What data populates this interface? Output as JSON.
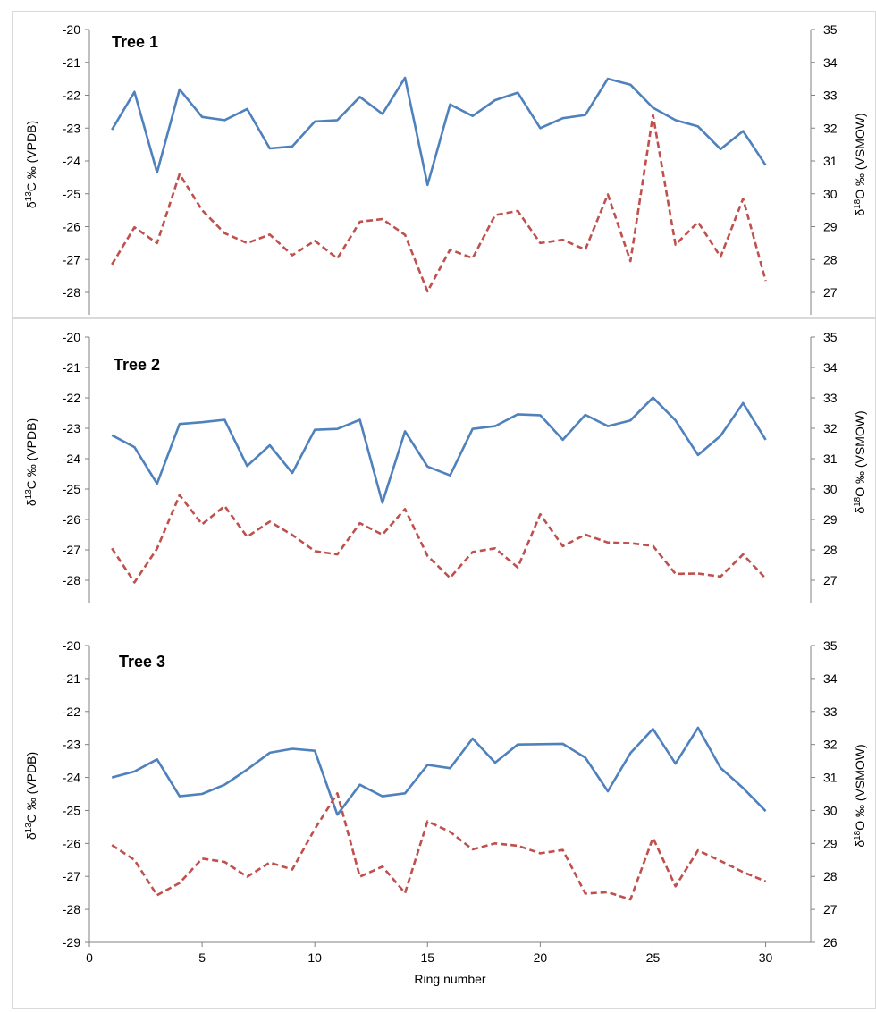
{
  "figure": {
    "xlabel": "Ring number",
    "x_ticks": [
      "0",
      "5",
      "10",
      "15",
      "20",
      "25",
      "30"
    ],
    "colors": {
      "carbon": "#4f81bd",
      "oxygen": "#c0504d",
      "axis": "#808080",
      "frame": "#d9d9d9"
    }
  },
  "chart_data": [
    {
      "type": "line",
      "title": "Tree 1",
      "xlabel": "",
      "ylabel_left": "δ13C ‰ (VPDB)",
      "ylabel_right": "δ18O ‰ (VSMOW)",
      "ylim_left": [
        -28,
        -20
      ],
      "ylim_right": [
        27,
        35
      ],
      "y_ticks_left": [
        "-20",
        "-21",
        "-22",
        "-23",
        "-24",
        "-25",
        "-26",
        "-27",
        "-28"
      ],
      "y_ticks_right": [
        "35",
        "34",
        "33",
        "32",
        "31",
        "30",
        "29",
        "28",
        "27"
      ],
      "x": [
        1,
        2,
        3,
        4,
        5,
        6,
        7,
        8,
        9,
        10,
        11,
        12,
        13,
        14,
        15,
        16,
        17,
        18,
        19,
        20,
        21,
        22,
        23,
        24,
        25,
        26,
        27,
        28,
        29,
        30
      ],
      "series": [
        {
          "key": "d13C",
          "axis": "left",
          "style": "solid",
          "values": [
            -23.05,
            -21.9,
            -24.35,
            -21.82,
            -22.66,
            -22.76,
            -22.42,
            -23.62,
            -23.56,
            -22.8,
            -22.76,
            -22.05,
            -22.57,
            -21.47,
            -24.73,
            -22.28,
            -22.63,
            -22.15,
            -21.92,
            -23.0,
            -22.7,
            -22.6,
            -21.5,
            -21.68,
            -22.38,
            -22.76,
            -22.95,
            -23.64,
            -23.09,
            -24.13
          ]
        },
        {
          "key": "d18O",
          "axis": "right",
          "style": "dashed",
          "values": [
            27.85,
            28.98,
            28.5,
            30.6,
            29.5,
            28.8,
            28.5,
            28.76,
            28.13,
            28.57,
            28.03,
            29.15,
            29.23,
            28.75,
            27.03,
            28.3,
            28.04,
            29.35,
            29.48,
            28.5,
            28.6,
            28.3,
            29.98,
            27.95,
            32.4,
            28.45,
            29.14,
            28.08,
            29.85,
            27.35
          ]
        }
      ]
    },
    {
      "type": "line",
      "title": "Tree 2",
      "xlabel": "",
      "ylabel_left": "δ13C ‰ (VPDB)",
      "ylabel_right": "δ18O ‰ (VSMOW)",
      "ylim_left": [
        -28,
        -20
      ],
      "ylim_right": [
        27,
        35
      ],
      "y_ticks_left": [
        "-20",
        "-21",
        "-22",
        "-23",
        "-24",
        "-25",
        "-26",
        "-27",
        "-28"
      ],
      "y_ticks_right": [
        "35",
        "34",
        "33",
        "32",
        "31",
        "30",
        "29",
        "28",
        "27"
      ],
      "x": [
        1,
        2,
        3,
        4,
        5,
        6,
        7,
        8,
        9,
        10,
        11,
        12,
        13,
        14,
        15,
        16,
        17,
        18,
        19,
        20,
        21,
        22,
        23,
        24,
        25,
        26,
        27,
        28,
        29,
        30
      ],
      "series": [
        {
          "key": "d13C",
          "axis": "left",
          "style": "solid",
          "values": [
            -23.23,
            -23.62,
            -24.82,
            -22.86,
            -22.8,
            -22.72,
            -24.24,
            -23.56,
            -24.47,
            -23.05,
            -23.02,
            -22.72,
            -25.45,
            -23.1,
            -24.26,
            -24.55,
            -23.02,
            -22.93,
            -22.54,
            -22.57,
            -23.38,
            -22.56,
            -22.93,
            -22.74,
            -21.99,
            -22.74,
            -23.88,
            -23.25,
            -22.17,
            -23.38
          ]
        },
        {
          "key": "d18O",
          "axis": "right",
          "style": "dashed",
          "values": [
            28.05,
            26.93,
            28.04,
            29.8,
            28.84,
            29.44,
            28.43,
            28.93,
            28.49,
            27.96,
            27.85,
            28.88,
            28.5,
            29.34,
            27.8,
            27.08,
            27.93,
            28.05,
            27.42,
            29.17,
            28.12,
            28.5,
            28.24,
            28.22,
            28.13,
            27.21,
            27.22,
            27.12,
            27.85,
            27.06
          ]
        }
      ]
    },
    {
      "type": "line",
      "title": "Tree 3",
      "xlabel": "Ring number",
      "ylabel_left": "δ13C ‰ (VPDB)",
      "ylabel_right": "δ18O ‰ (VSMOW)",
      "ylim_left": [
        -29,
        -20
      ],
      "ylim_right": [
        26,
        35
      ],
      "xlim": [
        0,
        32
      ],
      "y_ticks_left": [
        "-20",
        "-21",
        "-22",
        "-23",
        "-24",
        "-25",
        "-26",
        "-27",
        "-28",
        "-29"
      ],
      "y_ticks_right": [
        "35",
        "34",
        "33",
        "32",
        "31",
        "30",
        "29",
        "28",
        "27",
        "26"
      ],
      "x": [
        1,
        2,
        3,
        4,
        5,
        6,
        7,
        8,
        9,
        10,
        11,
        12,
        13,
        14,
        15,
        16,
        17,
        18,
        19,
        20,
        21,
        22,
        23,
        24,
        25,
        26,
        27,
        28,
        29,
        30
      ],
      "series": [
        {
          "key": "d13C",
          "axis": "left",
          "style": "solid",
          "values": [
            -24.0,
            -23.82,
            -23.45,
            -24.57,
            -24.5,
            -24.22,
            -23.76,
            -23.25,
            -23.13,
            -23.19,
            -25.13,
            -24.22,
            -24.57,
            -24.48,
            -23.62,
            -23.72,
            -22.82,
            -23.55,
            -23.0,
            -22.99,
            -22.98,
            -23.4,
            -24.42,
            -23.26,
            -22.53,
            -23.58,
            -22.49,
            -23.71,
            -24.32,
            -25.02
          ]
        },
        {
          "key": "d18O",
          "axis": "right",
          "style": "dashed",
          "values": [
            28.95,
            28.5,
            27.43,
            27.8,
            28.54,
            28.44,
            27.99,
            28.42,
            28.21,
            29.44,
            30.52,
            27.99,
            28.3,
            27.5,
            29.67,
            29.35,
            28.82,
            29.0,
            28.93,
            28.7,
            28.8,
            27.48,
            27.52,
            27.3,
            29.17,
            27.7,
            28.79,
            28.47,
            28.13,
            27.85
          ]
        }
      ]
    }
  ]
}
